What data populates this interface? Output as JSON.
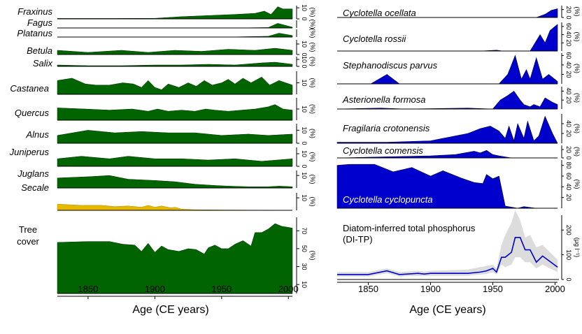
{
  "chart_data": [
    {
      "type": "area",
      "title": "",
      "xlabel": "Age (CE years)",
      "xlim": [
        1827,
        2003
      ],
      "xticks": [
        1850,
        1900,
        1950,
        2000
      ],
      "color": "#006400",
      "secale_color": "#E6B800",
      "series": [
        {
          "name": "Fraxinus",
          "unit": "(%)",
          "ylim": [
            0,
            12
          ],
          "ticks": [
            0,
            10
          ],
          "x": [
            1827,
            1870,
            1900,
            1920,
            1940,
            1960,
            1975,
            1982,
            1987,
            1992,
            1996,
            2003
          ],
          "values": [
            0.4,
            0.4,
            0.5,
            2,
            3,
            4,
            5,
            7,
            4,
            11,
            9,
            9
          ]
        },
        {
          "name": "Fagus",
          "unit": "(%)",
          "ylim": [
            0,
            5
          ],
          "ticks": [],
          "x": [
            1827,
            1900,
            1960,
            1985,
            1992,
            2003
          ],
          "values": [
            0,
            0,
            0,
            0.3,
            3,
            0.5
          ]
        },
        {
          "name": "Platanus",
          "unit": "(%)",
          "ylim": [
            0,
            5
          ],
          "ticks": [],
          "x": [
            1827,
            1900,
            1960,
            1985,
            1993,
            2003
          ],
          "values": [
            0,
            0.1,
            0.1,
            0.5,
            2.5,
            1
          ]
        },
        {
          "name": "Betula",
          "unit": "(%)",
          "ylim": [
            0,
            14
          ],
          "ticks": [
            0,
            10
          ],
          "x": [
            1827,
            1850,
            1875,
            1895,
            1915,
            1935,
            1955,
            1975,
            1990,
            2003
          ],
          "values": [
            4,
            2,
            4,
            2,
            4,
            3,
            5,
            4,
            6,
            4
          ]
        },
        {
          "name": "Salix",
          "unit": "(%)",
          "ylim": [
            0,
            14
          ],
          "ticks": [
            0,
            10
          ],
          "x": [
            1827,
            1850,
            1875,
            1900,
            1920,
            1940,
            1960,
            1980,
            1990,
            2003
          ],
          "values": [
            2,
            1,
            1,
            2,
            2,
            3,
            2,
            5,
            6,
            3
          ]
        },
        {
          "name": "Castanea",
          "unit": "(%)",
          "ylim": [
            0,
            20
          ],
          "ticks": [
            10
          ],
          "x": [
            1827,
            1838,
            1848,
            1856,
            1866,
            1876,
            1884,
            1890,
            1895,
            1900,
            1905,
            1910,
            1918,
            1925,
            1931,
            1937,
            1943,
            1950,
            1955,
            1960,
            1966,
            1972,
            1980,
            1986,
            1993,
            2003
          ],
          "values": [
            12,
            14,
            9,
            8,
            8,
            10,
            9,
            6,
            12,
            6,
            4,
            9,
            6,
            10,
            7,
            12,
            8,
            10,
            13,
            9,
            14,
            10,
            15,
            8,
            12,
            8
          ]
        },
        {
          "name": "Quercus",
          "unit": "(%)",
          "ylim": [
            0,
            20
          ],
          "ticks": [
            10
          ],
          "x": [
            1827,
            1848,
            1866,
            1883,
            1895,
            1902,
            1910,
            1920,
            1930,
            1938,
            1945,
            1955,
            1965,
            1975,
            1985,
            1990,
            1996,
            2003
          ],
          "values": [
            11,
            10,
            9,
            10,
            8,
            10,
            8,
            9,
            8,
            10,
            9,
            8,
            9,
            10,
            12,
            14,
            10,
            9
          ]
        },
        {
          "name": "Alnus",
          "unit": "(%)",
          "ylim": [
            0,
            15
          ],
          "ticks": [
            0,
            10
          ],
          "x": [
            1827,
            1850,
            1870,
            1890,
            1910,
            1930,
            1950,
            1970,
            1985,
            2003
          ],
          "values": [
            6,
            10,
            8,
            9,
            8,
            8,
            6,
            7,
            6,
            7
          ]
        },
        {
          "name": "Juniperus",
          "unit": "(%)",
          "ylim": [
            0,
            15
          ],
          "ticks": [
            0,
            10
          ],
          "x": [
            1827,
            1845,
            1866,
            1880,
            1900,
            1920,
            1940,
            1960,
            1980,
            2003
          ],
          "values": [
            6,
            8,
            6,
            8,
            6,
            6,
            5,
            6,
            4,
            6
          ]
        },
        {
          "name": "Juglans",
          "unit": "(%)",
          "ylim": [
            0,
            14
          ],
          "ticks": [
            10
          ],
          "x": [
            1827,
            1850,
            1866,
            1880,
            1900,
            1915,
            1930,
            1945,
            1955,
            1970,
            1985,
            1993,
            2003
          ],
          "values": [
            8,
            9,
            10,
            7,
            6,
            5,
            3,
            2,
            1.5,
            1,
            1,
            1.5,
            1
          ]
        },
        {
          "name": "Secale",
          "unit": "(%)",
          "ylim": [
            0,
            14
          ],
          "ticks": [
            10
          ],
          "secale": true,
          "x": [
            1827,
            1845,
            1860,
            1870,
            1880,
            1890,
            1895,
            1900,
            1905,
            1912,
            1915,
            1920,
            1930,
            1950,
            1970,
            2003
          ],
          "values": [
            5,
            4,
            4,
            3,
            3.5,
            2.5,
            4,
            2.5,
            3.5,
            2,
            2.5,
            1,
            0.5,
            0.3,
            0.2,
            0.1
          ]
        },
        {
          "name": "Tree cover",
          "unit": "(%)",
          "ylim": [
            0,
            85
          ],
          "ticks": [
            10,
            30,
            50,
            70
          ],
          "x": [
            1827,
            1850,
            1866,
            1876,
            1885,
            1890,
            1895,
            1900,
            1905,
            1910,
            1918,
            1925,
            1931,
            1937,
            1940,
            1945,
            1950,
            1955,
            1960,
            1966,
            1972,
            1975,
            1980,
            1985,
            1990,
            1995,
            2003
          ],
          "values": [
            57,
            58,
            58,
            55,
            54,
            47,
            56,
            46,
            53,
            49,
            47,
            50,
            49,
            44,
            51,
            54,
            50,
            50,
            55,
            59,
            53,
            68,
            68,
            72,
            78,
            75,
            73
          ]
        }
      ]
    },
    {
      "type": "area",
      "title": "",
      "xlabel": "Age (CE years)",
      "xlim": [
        1825,
        2002
      ],
      "xticks": [
        1850,
        1900,
        1950,
        2000
      ],
      "color": "#0000CC",
      "series": [
        {
          "name": "Cyclotella ocellata",
          "ylim": [
            0,
            30
          ],
          "ticks": [
            0,
            20
          ],
          "x": [
            1825,
            1950,
            1985,
            1992,
            1997,
            2002
          ],
          "values": [
            0,
            0,
            0,
            8,
            18,
            22
          ]
        },
        {
          "name": "Cyclotella rossii",
          "ylim": [
            0,
            70
          ],
          "ticks": [
            20,
            40,
            60
          ],
          "x": [
            1825,
            1940,
            1953,
            1958,
            1980,
            1988,
            1992,
            1996,
            2002
          ],
          "values": [
            0,
            0,
            2,
            0,
            0,
            40,
            20,
            50,
            65
          ]
        },
        {
          "name": "Stephanodiscus parvus",
          "ylim": [
            0,
            65
          ],
          "ticks": [
            20,
            40,
            60
          ],
          "x": [
            1825,
            1852,
            1865,
            1875,
            1955,
            1962,
            1968,
            1973,
            1977,
            1980,
            1985,
            1990,
            1995,
            2002
          ],
          "values": [
            0,
            0,
            20,
            0,
            0,
            20,
            60,
            10,
            30,
            10,
            55,
            10,
            20,
            5
          ]
        },
        {
          "name": "Asterionella formosa",
          "ylim": [
            0,
            50
          ],
          "ticks": [
            20,
            40
          ],
          "x": [
            1825,
            1860,
            1880,
            1930,
            1950,
            1956,
            1962,
            1967,
            1972,
            1975,
            1980,
            1983,
            1988,
            1992,
            1998,
            2002
          ],
          "values": [
            0,
            2,
            0,
            2,
            0,
            20,
            30,
            40,
            20,
            10,
            5,
            10,
            5,
            25,
            15,
            10
          ]
        },
        {
          "name": "Fragilaria crotonensis",
          "ylim": [
            0,
            60
          ],
          "ticks": [
            20,
            40
          ],
          "x": [
            1825,
            1865,
            1900,
            1930,
            1940,
            1948,
            1955,
            1960,
            1963,
            1967,
            1970,
            1975,
            1978,
            1983,
            1987,
            1992,
            1998,
            2002
          ],
          "values": [
            2,
            2,
            5,
            20,
            30,
            35,
            25,
            10,
            35,
            5,
            40,
            10,
            45,
            5,
            15,
            55,
            20,
            0
          ]
        },
        {
          "name": "Cyclotella comensis",
          "ylim": [
            0,
            30
          ],
          "ticks": [
            0,
            20
          ],
          "x": [
            1825,
            1900,
            1920,
            1935,
            1940,
            1945,
            1950,
            1955,
            1965,
            1980,
            2002
          ],
          "values": [
            0,
            5,
            8,
            16,
            12,
            18,
            8,
            5,
            0,
            0,
            0
          ]
        },
        {
          "name": "Cyclotella cyclopuncta",
          "ylim": [
            0,
            90
          ],
          "ticks": [
            20,
            40,
            60,
            80
          ],
          "x": [
            1825,
            1835,
            1855,
            1870,
            1885,
            1900,
            1910,
            1925,
            1935,
            1942,
            1945,
            1950,
            1955,
            1960,
            1965,
            1970,
            1975,
            1985,
            2002
          ],
          "values": [
            80,
            82,
            82,
            68,
            76,
            60,
            70,
            56,
            48,
            46,
            63,
            55,
            60,
            4,
            2,
            0,
            3,
            0,
            0
          ]
        },
        {
          "name": "Diatom-inferred total phosphorus",
          "name2": "(DI-TP)",
          "unit": "(μg l⁻¹)",
          "ylim": [
            0,
            260
          ],
          "ticks": [
            0,
            100,
            200
          ],
          "x": [
            1825,
            1850,
            1865,
            1875,
            1890,
            1895,
            1900,
            1930,
            1940,
            1945,
            1950,
            1953,
            1957,
            1960,
            1965,
            1968,
            1972,
            1976,
            1980,
            1985,
            1990,
            2002
          ],
          "values": [
            20,
            20,
            35,
            20,
            25,
            22,
            25,
            25,
            30,
            35,
            45,
            30,
            90,
            90,
            110,
            170,
            170,
            120,
            120,
            70,
            95,
            50
          ],
          "ci_upper": [
            30,
            30,
            45,
            30,
            35,
            32,
            35,
            40,
            50,
            55,
            60,
            45,
            140,
            180,
            230,
            280,
            240,
            170,
            180,
            130,
            140,
            80
          ],
          "ci_lower": [
            12,
            12,
            25,
            12,
            15,
            14,
            15,
            15,
            20,
            22,
            30,
            20,
            60,
            50,
            60,
            90,
            90,
            70,
            70,
            45,
            60,
            30
          ]
        }
      ]
    }
  ]
}
